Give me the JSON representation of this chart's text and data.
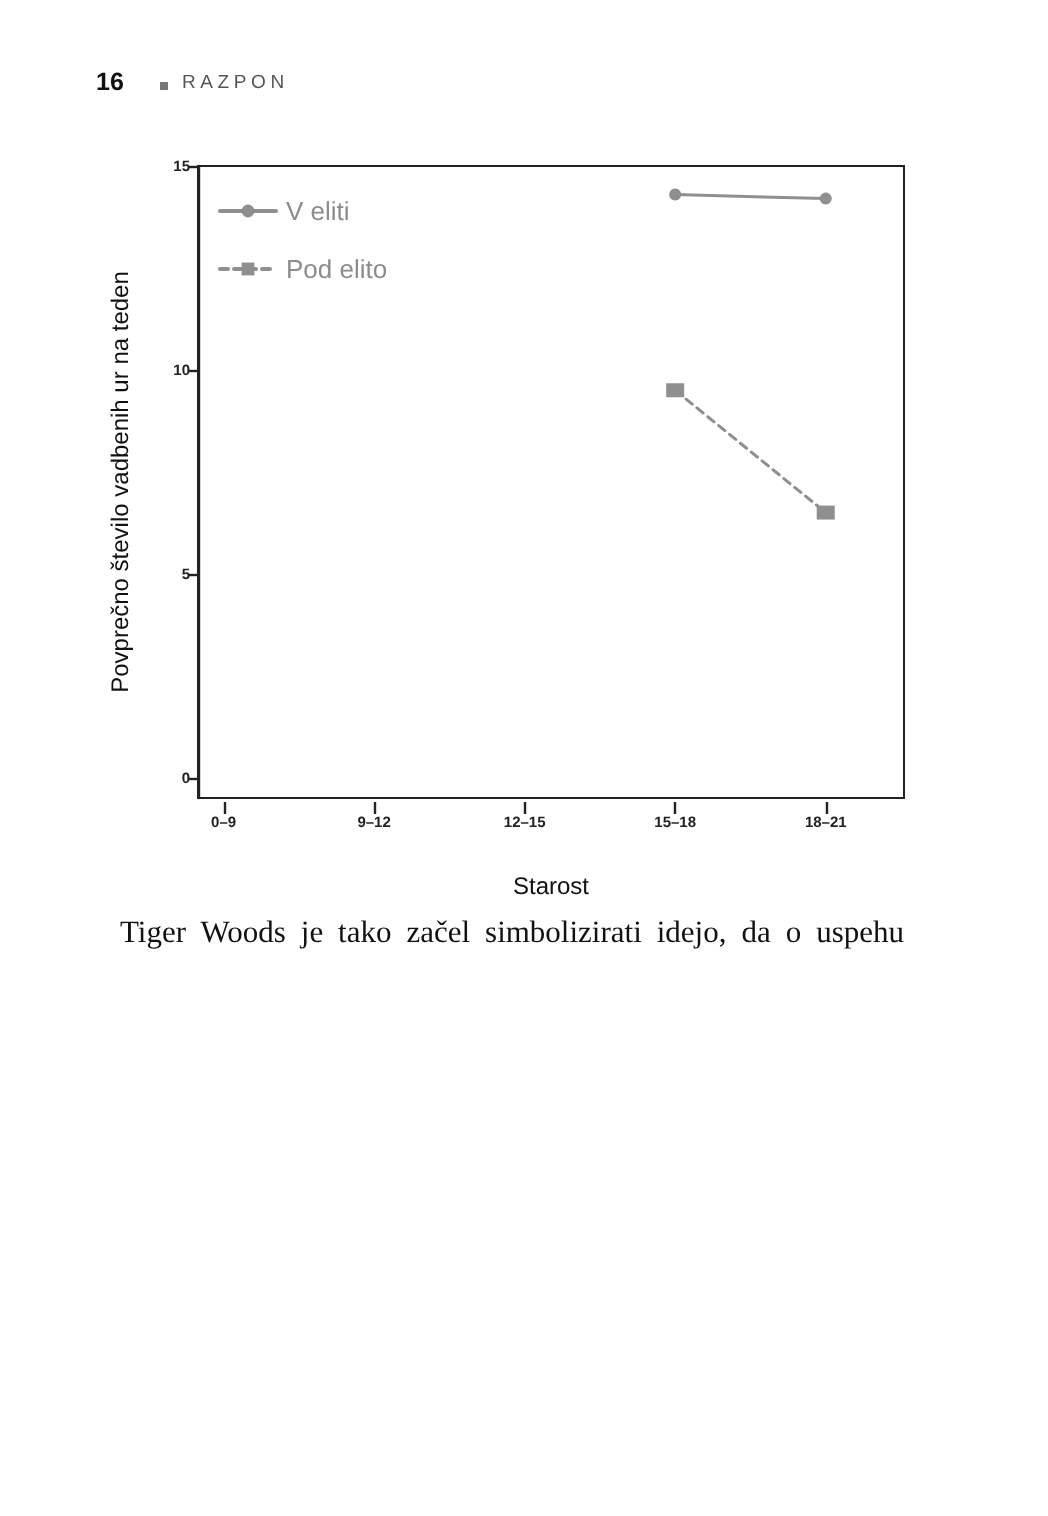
{
  "chart_data": {
    "type": "line",
    "categories": [
      "0–9",
      "9–12",
      "12–15",
      "15–18",
      "18–21"
    ],
    "series": [
      {
        "name": "V eliti",
        "color": "#8f8f8f",
        "values": [
          null,
          null,
          null,
          14.3,
          14.2
        ],
        "marker": "circle",
        "line_style": "solid"
      },
      {
        "name": "Pod elito",
        "color": "#8f8f8f",
        "values": [
          null,
          null,
          null,
          9.5,
          6.5
        ],
        "marker": "square",
        "line_style": "dashed"
      }
    ],
    "xlabel": "Starost",
    "ylabel": "Povprečno število vadbenih ur na teden",
    "ylim": [
      -0.5,
      15
    ],
    "yticks": [
      0,
      5,
      10,
      15
    ],
    "legend": "top left",
    "annotations": [
      "16",
      "RAZPON",
      "Tiger Woods je tako začel simbolizirati idejo, da o uspehu"
    ]
  }
}
